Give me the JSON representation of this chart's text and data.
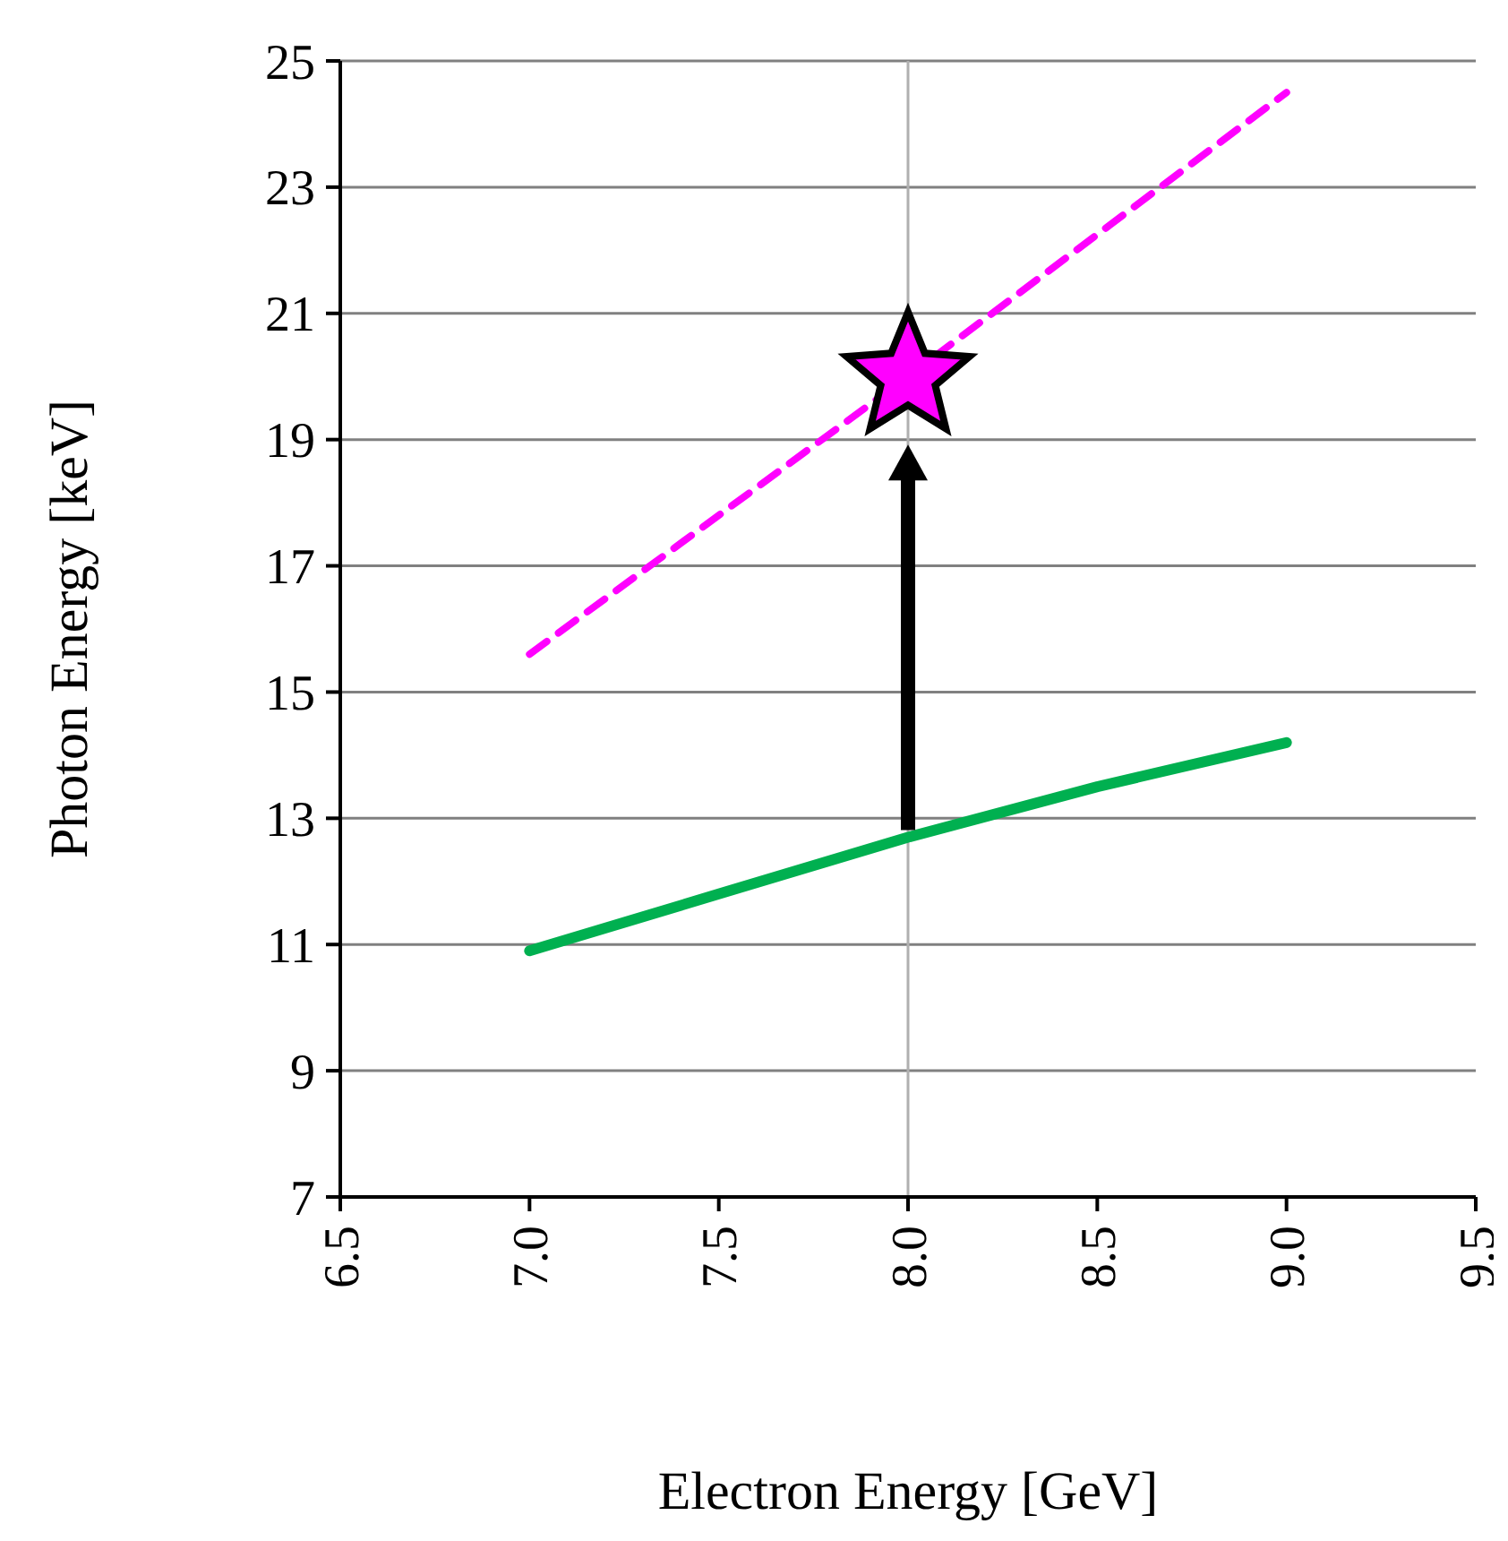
{
  "chart_data": {
    "type": "line",
    "xlabel": "Electron Energy [GeV]",
    "ylabel": "Photon Energy [keV]",
    "xlim": [
      6.5,
      9.5
    ],
    "xticks": [
      6.5,
      {
        "value": 7,
        "label": "7.0"
      },
      7.5,
      {
        "value": 8,
        "label": "8.0"
      },
      8.5,
      {
        "value": 9,
        "label": "9.0"
      },
      9.5
    ],
    "ylim": [
      7,
      25
    ],
    "yticks": [
      7,
      9,
      11,
      13,
      15,
      17,
      19,
      21,
      23,
      25
    ],
    "grid": "y",
    "ref_lines": [
      {
        "axis": "x",
        "value": 8,
        "color": "#b0b0b0"
      }
    ],
    "series": [
      {
        "color": "#00b050",
        "x": [
          7.0,
          7.5,
          8.0,
          8.5,
          9.0
        ],
        "values": [
          10.9,
          11.8,
          12.7,
          13.5,
          14.2
        ],
        "line_style": "solid",
        "marker": "none"
      },
      {
        "color": "#ff00ff",
        "x": [
          7.0,
          8.0,
          9.0
        ],
        "values": [
          15.6,
          20.0,
          24.5
        ],
        "line_style": "dashed",
        "marker": "none"
      },
      {
        "type": "scatter",
        "color": "#ff00ff",
        "x": [
          8.0
        ],
        "values": [
          20.0
        ],
        "marker": "star"
      }
    ]
  }
}
